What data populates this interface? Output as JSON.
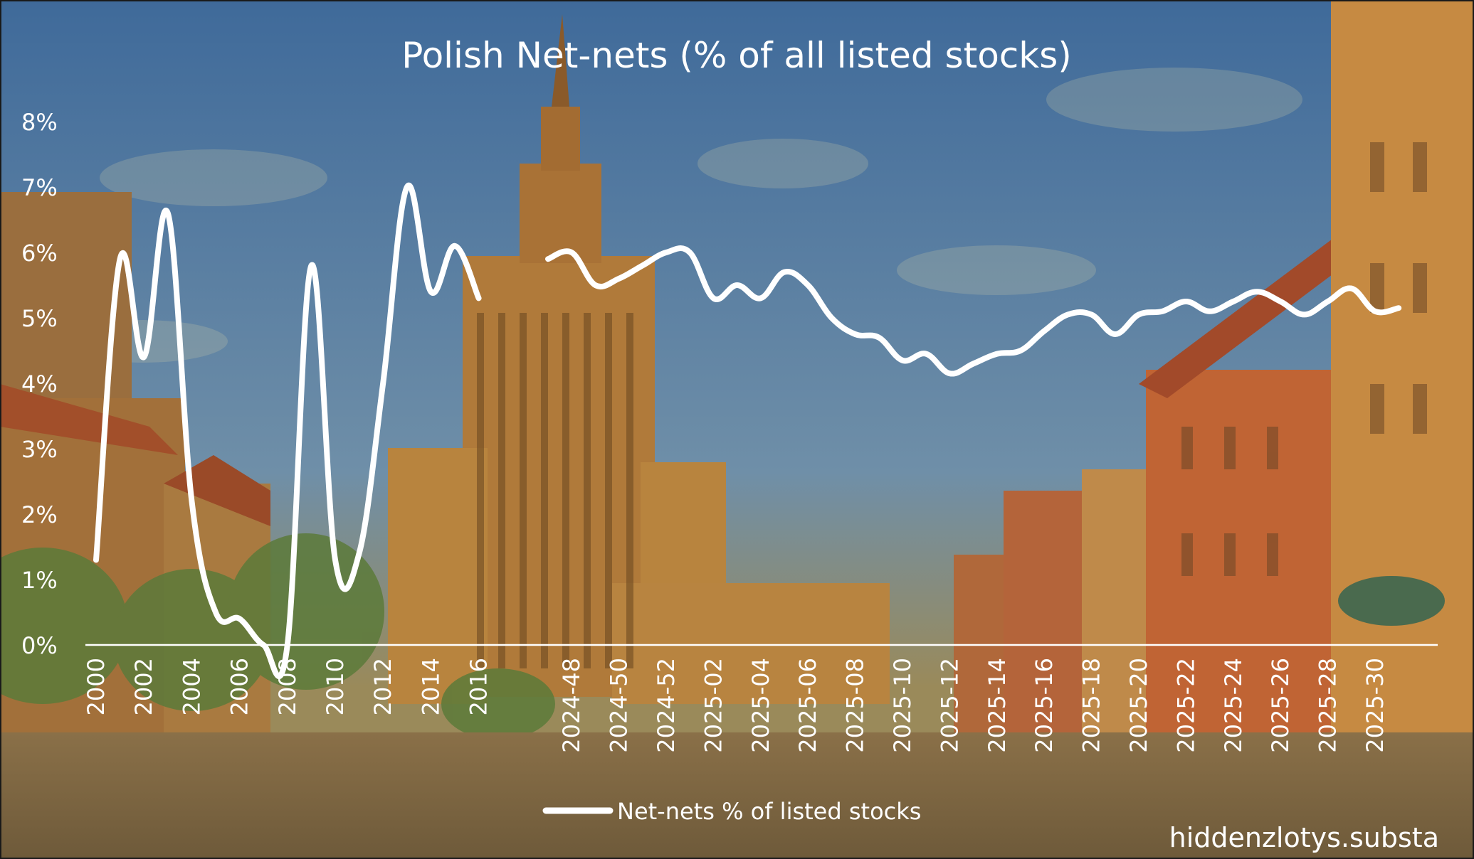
{
  "colors": {
    "sky_top": "#3f6a9a",
    "sky_mid": "#6f8fa8",
    "horizon": "#9a8a5a",
    "building_ochre": "#b0803a",
    "building_dark": "#7a5424",
    "building_red": "#b85a2c",
    "tree_green": "#5f7a3a",
    "street": "#6e5a3a",
    "line": "#ffffff"
  },
  "chart_data": {
    "type": "line",
    "title": "Polish Net-nets (% of all listed stocks)",
    "xlabel": "",
    "ylabel": "",
    "ylim": [
      0,
      8
    ],
    "yticks": [
      "0%",
      "1%",
      "2%",
      "3%",
      "4%",
      "5%",
      "6%",
      "7%",
      "8%"
    ],
    "grid": false,
    "legend_position": "bottom-center",
    "legend_label": "Net-nets % of listed stocks",
    "watermark": "hiddenzlotys.substa",
    "series": [
      {
        "name": "Net-nets % of listed stocks",
        "segments": [
          {
            "x": [
              "2000",
              "2001",
              "2002",
              "2003",
              "2004",
              "2005",
              "2006",
              "2007",
              "2008",
              "2009",
              "2010",
              "2011",
              "2012",
              "2013",
              "2014",
              "2015",
              "2016"
            ],
            "values": [
              1.3,
              5.9,
              4.4,
              6.6,
              2.2,
              0.5,
              0.4,
              0.0,
              0.0,
              5.8,
              1.3,
              1.4,
              4.0,
              7.0,
              5.4,
              6.1,
              5.3
            ],
            "tick_labels": [
              "2000",
              "2002",
              "2004",
              "2006",
              "2008",
              "2010",
              "2012",
              "2014",
              "2016"
            ]
          },
          {
            "x": [
              "2024-47",
              "2024-48",
              "2024-49",
              "2024-50",
              "2024-51",
              "2024-52",
              "2025-01",
              "2025-02",
              "2025-03",
              "2025-04",
              "2025-05",
              "2025-06",
              "2025-07",
              "2025-08",
              "2025-09",
              "2025-10",
              "2025-11",
              "2025-12",
              "2025-13",
              "2025-14",
              "2025-15",
              "2025-16",
              "2025-17",
              "2025-18",
              "2025-19",
              "2025-20",
              "2025-21",
              "2025-22",
              "2025-23",
              "2025-24",
              "2025-25",
              "2025-26",
              "2025-27",
              "2025-28",
              "2025-29",
              "2025-30",
              "2025-31"
            ],
            "values": [
              5.9,
              6.0,
              5.5,
              5.6,
              5.8,
              6.0,
              6.0,
              5.3,
              5.5,
              5.3,
              5.7,
              5.5,
              5.0,
              4.75,
              4.7,
              4.35,
              4.45,
              4.15,
              4.3,
              4.45,
              4.5,
              4.8,
              5.05,
              5.05,
              4.75,
              5.05,
              5.1,
              5.25,
              5.1,
              5.25,
              5.4,
              5.25,
              5.05,
              5.25,
              5.45,
              5.1,
              5.15
            ],
            "tick_labels": [
              "2024-48",
              "2024-50",
              "2024-52",
              "2025-02",
              "2025-04",
              "2025-06",
              "2025-08",
              "2025-10",
              "2025-12",
              "2025-14",
              "2025-16",
              "2025-18",
              "2025-20",
              "2025-22",
              "2025-24",
              "2025-26",
              "2025-28",
              "2025-30"
            ]
          }
        ]
      }
    ]
  }
}
